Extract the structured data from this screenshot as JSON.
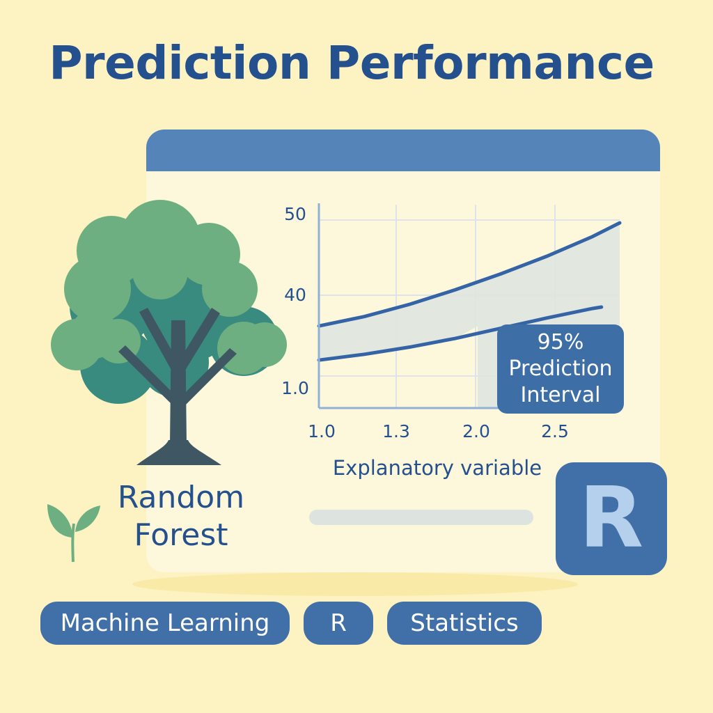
{
  "title": "Prediction Performance",
  "tree_label": "Random Forest",
  "r_logo": "R",
  "callout": "95% Prediction Interval",
  "tags": [
    "Machine Learning",
    "R",
    "Statistics"
  ],
  "colors": {
    "background": "#fcf2c2",
    "primary": "#25508e",
    "accent": "#4170a8",
    "tree_light": "#6daf81",
    "tree_dark": "#3a8b7f",
    "trunk": "#3f5663",
    "band": "#dfe5df"
  },
  "chart_data": {
    "type": "line",
    "title": "",
    "xlabel": "Explanatory variable",
    "ylabel": "",
    "x_ticks": [
      "1.0",
      "1.3",
      "2.0",
      "2.5"
    ],
    "y_ticks": [
      "50",
      "40",
      "1.0"
    ],
    "grid": true,
    "series": [
      {
        "name": "",
        "x": [
          0,
          0.5,
          1,
          1.5,
          2,
          2.5,
          3,
          3.3
        ],
        "y": [
          36.3,
          37.6,
          39.3,
          41.3,
          43.5,
          45.9,
          48.6,
          50.5
        ]
      },
      {
        "name": "",
        "x": [
          0,
          0.5,
          1,
          1.5,
          2,
          2.5,
          3,
          3.1
        ],
        "y": [
          31.6,
          32.4,
          33.4,
          34.6,
          36.0,
          37.4,
          38.7,
          38.9
        ]
      }
    ],
    "shaded_band": "95% Prediction Interval"
  }
}
